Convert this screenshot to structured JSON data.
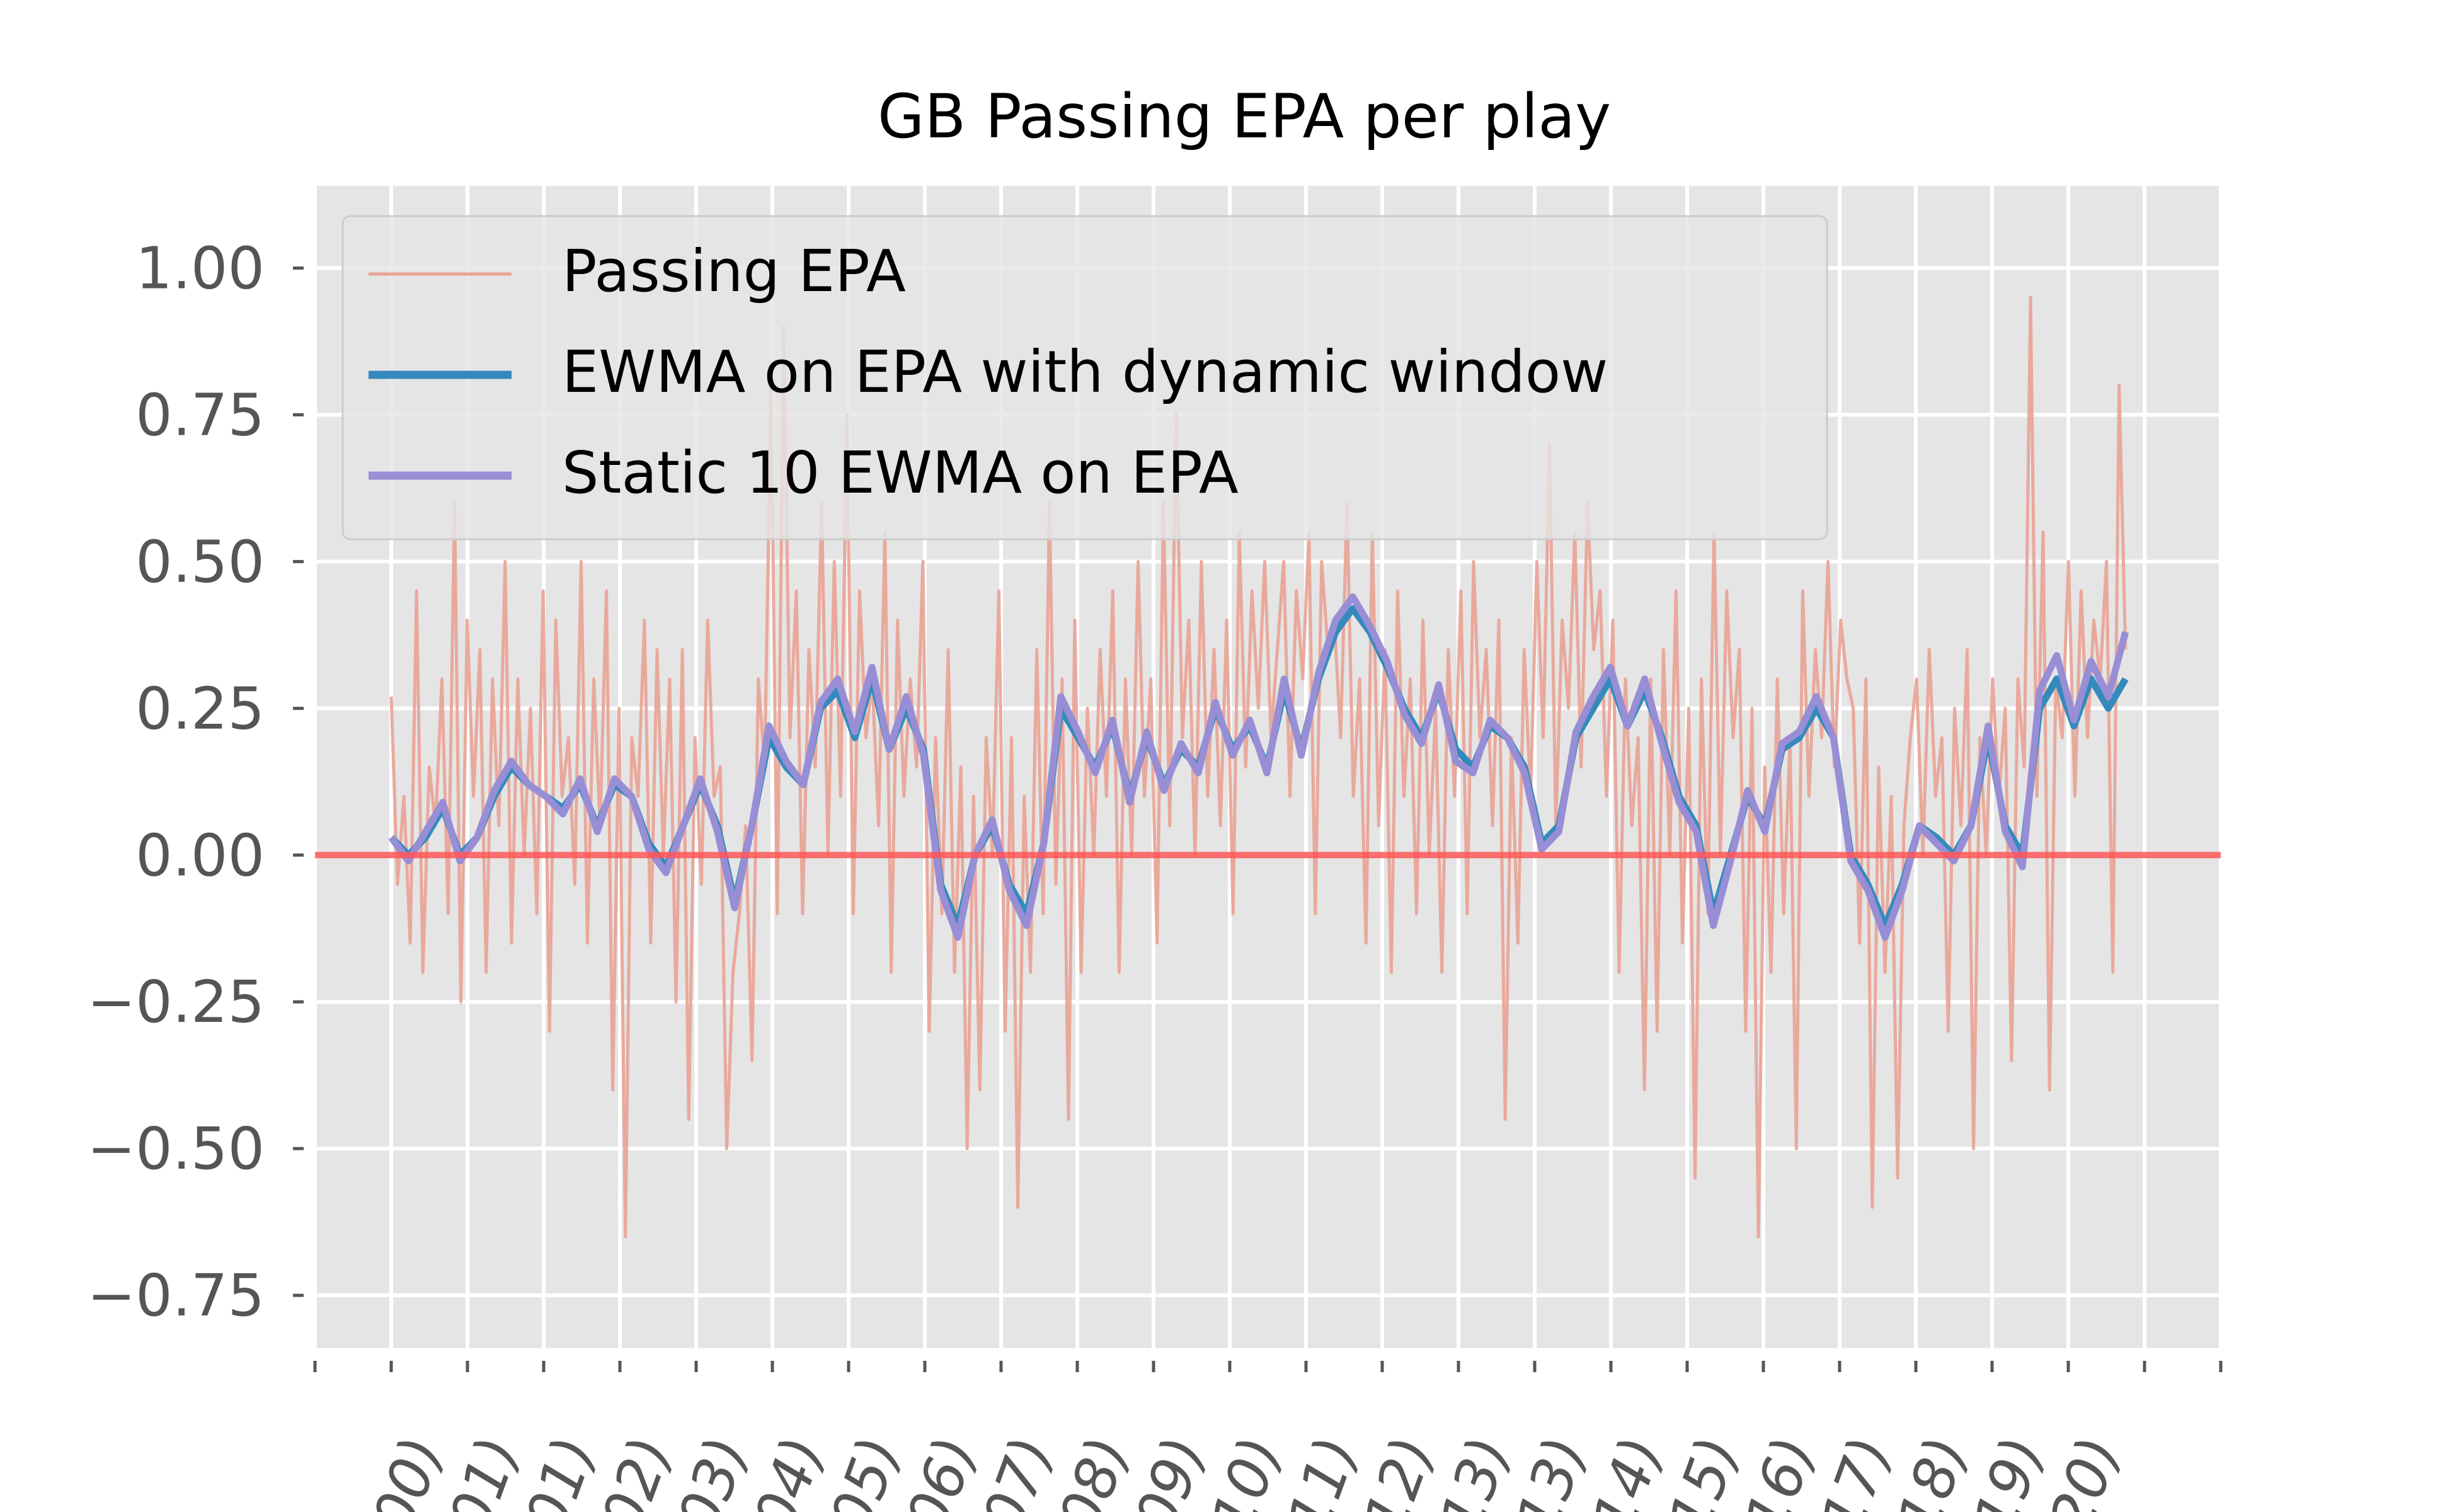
{
  "chart_data": {
    "type": "line",
    "title": "GB Passing EPA per play",
    "xlabel": "",
    "ylabel": "",
    "ylim": [
      -0.84,
      1.14
    ],
    "yticks": [
      1.0,
      0.75,
      0.5,
      0.25,
      0.0,
      -0.25,
      -0.5,
      -0.75
    ],
    "ytick_labels": [
      "1.00",
      "0.75",
      "0.50",
      "0.25",
      "0.00",
      "−0.25",
      "−0.50",
      "−0.75"
    ],
    "x_tick_labels": [
      "00)",
      "01)",
      "01)",
      "02)",
      "03)",
      "04)",
      "05)",
      "06)",
      "07)",
      "08)",
      "09)",
      "10)",
      "11)",
      "12)",
      "13)",
      "13)",
      "14)",
      "15)",
      "16)",
      "17)",
      "18)",
      "19)",
      "20)",
      ""
    ],
    "xlim": [
      -1,
      24
    ],
    "reference_line": {
      "y": 0.0,
      "color": "#ff5555"
    },
    "legend": {
      "location": "top-left",
      "entries": [
        {
          "label": "Passing EPA",
          "color": "#e8a294"
        },
        {
          "label": "EWMA on EPA with dynamic window",
          "color": "#348abd"
        },
        {
          "label": "Static 10 EWMA on EPA",
          "color": "#988ed5"
        }
      ]
    },
    "series": [
      {
        "name": "Passing EPA",
        "color": "#e8a294",
        "x_range": [
          0,
          22.75
        ],
        "anchors": [
          0.27,
          -0.05,
          0.1,
          -0.15,
          0.45,
          -0.2,
          0.15,
          0.05,
          0.3,
          -0.1,
          0.6,
          -0.25,
          0.4,
          0.1,
          0.35,
          -0.2,
          0.3,
          0.05,
          0.5,
          -0.15,
          0.3,
          0.0,
          0.25,
          -0.1,
          0.45,
          -0.3,
          0.4,
          0.1,
          0.2,
          -0.05,
          0.5,
          -0.15,
          0.3,
          0.05,
          0.45,
          -0.4,
          0.25,
          -0.65,
          0.2,
          0.1,
          0.4,
          -0.15,
          0.35,
          0.0,
          0.3,
          -0.25,
          0.35,
          -0.45,
          0.2,
          -0.05,
          0.4,
          0.1,
          0.15,
          -0.5,
          -0.2,
          -0.1,
          0.05,
          -0.35,
          0.3,
          0.15,
          0.8,
          -0.1,
          0.9,
          0.2,
          0.45,
          -0.1,
          0.35,
          0.15,
          0.6,
          0.0,
          0.5,
          0.1,
          0.75,
          -0.1,
          0.45,
          0.2,
          0.3,
          0.05,
          0.55,
          -0.2,
          0.4,
          0.1,
          0.3,
          0.15,
          0.5,
          -0.3,
          0.2,
          -0.1,
          0.35,
          -0.2,
          0.15,
          -0.5,
          0.1,
          -0.4,
          0.2,
          0.0,
          0.45,
          -0.3,
          0.2,
          -0.6,
          0.1,
          -0.2,
          0.35,
          -0.1,
          0.6,
          -0.05,
          0.3,
          -0.45,
          0.4,
          -0.2,
          0.25,
          0.0,
          0.35,
          0.1,
          0.45,
          -0.2,
          0.3,
          0.0,
          0.5,
          0.1,
          0.3,
          -0.15,
          0.6,
          0.05,
          0.75,
          0.2,
          0.4,
          0.0,
          0.5,
          0.1,
          0.35,
          0.05,
          0.4,
          -0.1,
          0.55,
          0.15,
          0.45,
          0.25,
          0.5,
          0.2,
          0.35,
          0.5,
          0.1,
          0.45,
          0.3,
          0.55,
          -0.1,
          0.5,
          0.35,
          0.4,
          0.2,
          0.6,
          0.1,
          0.3,
          -0.15,
          0.55,
          0.05,
          0.35,
          -0.2,
          0.45,
          0.1,
          0.3,
          -0.1,
          0.4,
          0.0,
          0.25,
          -0.2,
          0.35,
          0.1,
          0.45,
          -0.1,
          0.5,
          0.2,
          0.35,
          0.05,
          0.4,
          -0.45,
          0.2,
          -0.15,
          0.35,
          0.1,
          0.5,
          0.2,
          0.7,
          0.05,
          0.4,
          0.25,
          0.55,
          0.15,
          0.6,
          0.35,
          0.45,
          0.1,
          0.4,
          -0.2,
          0.3,
          0.05,
          0.2,
          -0.4,
          0.3,
          -0.3,
          0.35,
          0.0,
          0.45,
          -0.15,
          0.25,
          -0.55,
          0.3,
          -0.1,
          0.55,
          0.0,
          0.45,
          0.2,
          0.35,
          -0.3,
          0.25,
          -0.65,
          0.15,
          -0.2,
          0.3,
          -0.1,
          0.2,
          -0.5,
          0.45,
          0.1,
          0.35,
          0.2,
          0.5,
          0.15,
          0.4,
          0.3,
          0.25,
          -0.15,
          0.3,
          -0.6,
          0.15,
          -0.2,
          0.1,
          -0.55,
          0.05,
          0.2,
          0.3,
          0.0,
          0.35,
          0.1,
          0.2,
          -0.3,
          0.25,
          0.05,
          0.35,
          -0.5,
          0.2,
          0.0,
          0.3,
          0.1,
          0.25,
          -0.35,
          0.3,
          0.15,
          0.95,
          0.1,
          0.55,
          -0.4,
          0.3,
          0.2,
          0.5,
          0.1,
          0.45,
          0.2,
          0.4,
          0.3,
          0.5,
          -0.2,
          0.8,
          0.35
        ]
      },
      {
        "name": "EWMA on EPA with dynamic window",
        "color": "#348abd",
        "x_range": [
          0,
          22.75
        ],
        "anchors": [
          0.03,
          0.0,
          0.03,
          0.08,
          0.0,
          0.03,
          0.1,
          0.15,
          0.12,
          0.1,
          0.08,
          0.12,
          0.05,
          0.12,
          0.1,
          0.02,
          -0.02,
          0.05,
          0.12,
          0.05,
          -0.08,
          0.05,
          0.2,
          0.15,
          0.12,
          0.25,
          0.28,
          0.2,
          0.3,
          0.18,
          0.25,
          0.18,
          -0.05,
          -0.12,
          0.0,
          0.05,
          -0.05,
          -0.1,
          0.02,
          0.25,
          0.2,
          0.15,
          0.22,
          0.1,
          0.2,
          0.12,
          0.18,
          0.15,
          0.25,
          0.18,
          0.22,
          0.15,
          0.28,
          0.18,
          0.3,
          0.38,
          0.42,
          0.38,
          0.32,
          0.25,
          0.2,
          0.28,
          0.18,
          0.15,
          0.22,
          0.2,
          0.15,
          0.02,
          0.05,
          0.2,
          0.25,
          0.3,
          0.22,
          0.28,
          0.2,
          0.1,
          0.05,
          -0.1,
          0.0,
          0.1,
          0.05,
          0.18,
          0.2,
          0.25,
          0.2,
          0.0,
          -0.05,
          -0.12,
          -0.05,
          0.05,
          0.03,
          0.0,
          0.05,
          0.2,
          0.05,
          0.0,
          0.25,
          0.3,
          0.22,
          0.3,
          0.25,
          0.3
        ]
      },
      {
        "name": "Static 10 EWMA on EPA",
        "color": "#988ed5",
        "x_range": [
          0,
          22.75
        ],
        "anchors": [
          0.03,
          -0.01,
          0.04,
          0.09,
          -0.01,
          0.03,
          0.11,
          0.16,
          0.12,
          0.1,
          0.07,
          0.13,
          0.04,
          0.13,
          0.1,
          0.01,
          -0.03,
          0.05,
          0.13,
          0.04,
          -0.09,
          0.05,
          0.22,
          0.16,
          0.12,
          0.26,
          0.3,
          0.21,
          0.32,
          0.18,
          0.27,
          0.17,
          -0.06,
          -0.14,
          0.0,
          0.06,
          -0.06,
          -0.12,
          0.02,
          0.27,
          0.21,
          0.14,
          0.23,
          0.09,
          0.21,
          0.11,
          0.19,
          0.14,
          0.26,
          0.17,
          0.23,
          0.14,
          0.3,
          0.17,
          0.31,
          0.4,
          0.44,
          0.39,
          0.33,
          0.24,
          0.19,
          0.29,
          0.16,
          0.14,
          0.23,
          0.2,
          0.14,
          0.01,
          0.04,
          0.21,
          0.27,
          0.32,
          0.22,
          0.3,
          0.19,
          0.09,
          0.04,
          -0.12,
          -0.01,
          0.11,
          0.04,
          0.19,
          0.21,
          0.27,
          0.2,
          -0.01,
          -0.06,
          -0.14,
          -0.06,
          0.05,
          0.02,
          -0.01,
          0.05,
          0.22,
          0.04,
          -0.02,
          0.28,
          0.34,
          0.23,
          0.33,
          0.27,
          0.38
        ]
      }
    ]
  }
}
